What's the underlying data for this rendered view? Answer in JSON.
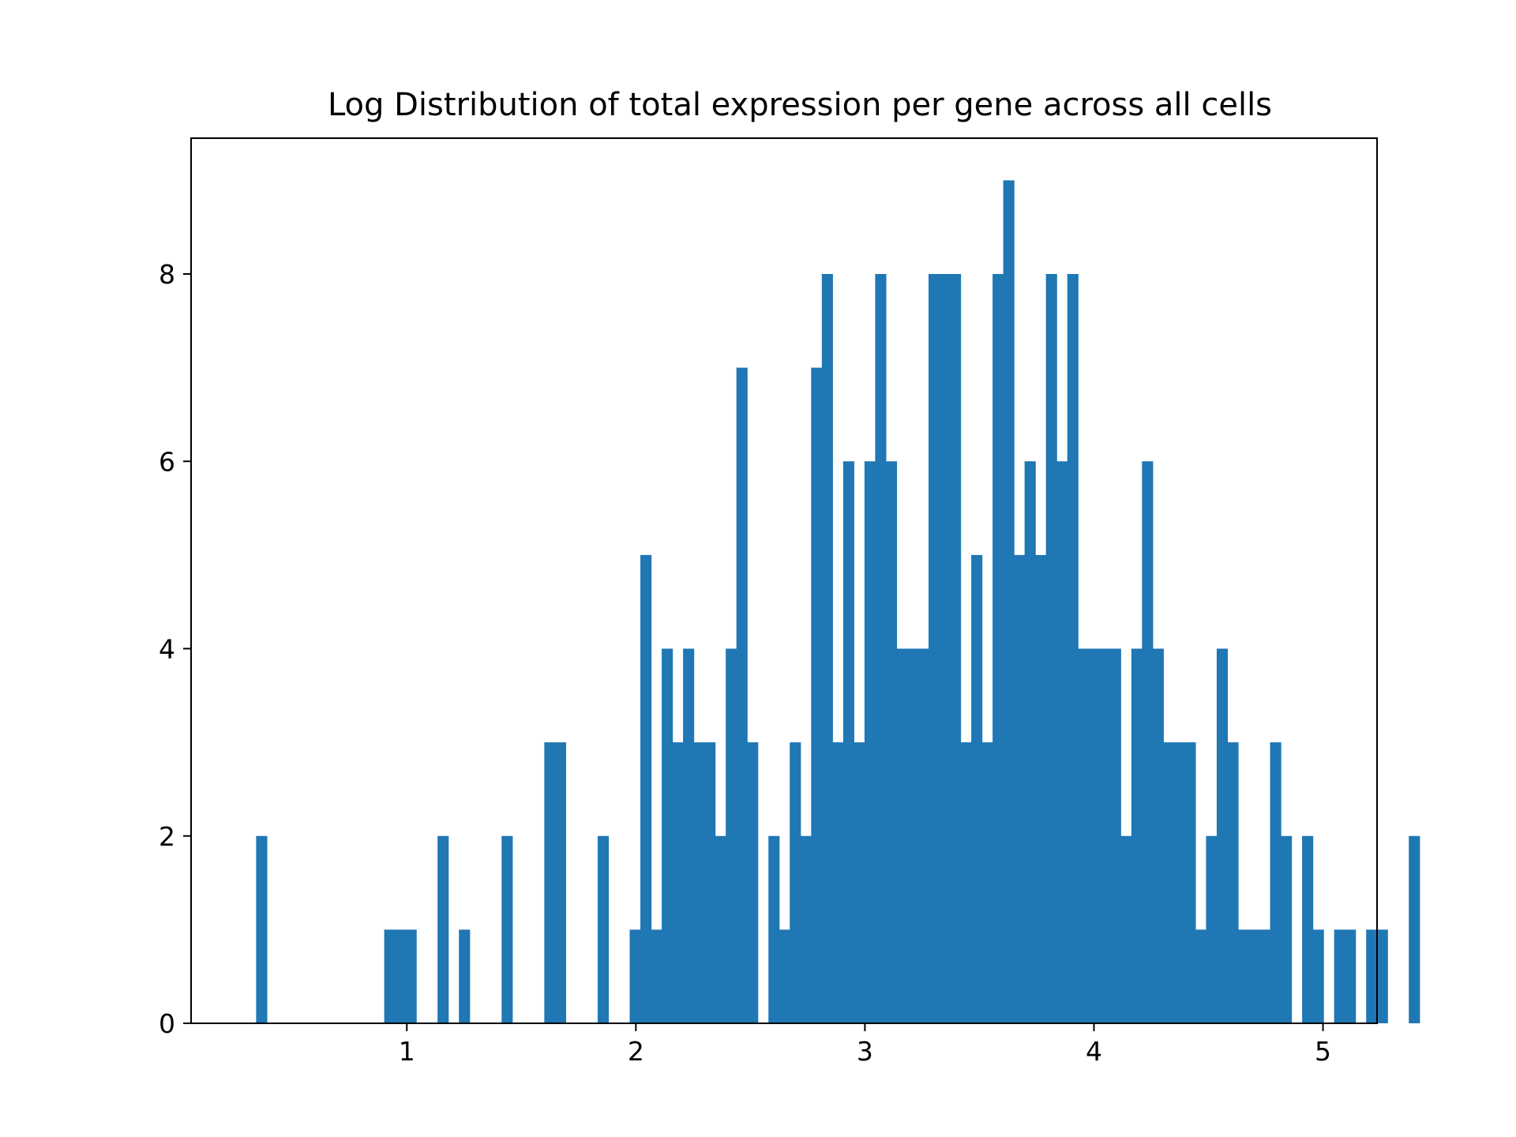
{
  "chart_data": {
    "type": "bar",
    "title": "Log Distribution of total expression per gene across all cells",
    "xlabel": "",
    "ylabel": "",
    "xlim": [
      0.058,
      5.236
    ],
    "ylim": [
      0,
      9.45
    ],
    "xticks": [
      1,
      2,
      3,
      4,
      5
    ],
    "yticks": [
      0,
      2,
      4,
      6,
      8
    ],
    "bar_color": "#1f77b4",
    "bin_start": 0.342,
    "bin_width": 0.0466,
    "counts": [
      2,
      0,
      0,
      0,
      0,
      0,
      0,
      0,
      0,
      0,
      0,
      0,
      1,
      1,
      1,
      0,
      0,
      2,
      0,
      1,
      0,
      0,
      0,
      2,
      0,
      0,
      0,
      3,
      3,
      0,
      0,
      0,
      2,
      0,
      0,
      1,
      5,
      1,
      4,
      3,
      4,
      3,
      3,
      2,
      4,
      7,
      3,
      0,
      2,
      1,
      3,
      2,
      7,
      8,
      3,
      6,
      3,
      6,
      8,
      6,
      4,
      4,
      4,
      8,
      8,
      8,
      3,
      5,
      3,
      8,
      9,
      5,
      6,
      5,
      8,
      6,
      8,
      4,
      4,
      4,
      4,
      2,
      4,
      6,
      4,
      3,
      3,
      3,
      1,
      2,
      4,
      3,
      1,
      1,
      1,
      3,
      2,
      0,
      2,
      1,
      0,
      1,
      1,
      0,
      1,
      1,
      0,
      0,
      2
    ]
  }
}
